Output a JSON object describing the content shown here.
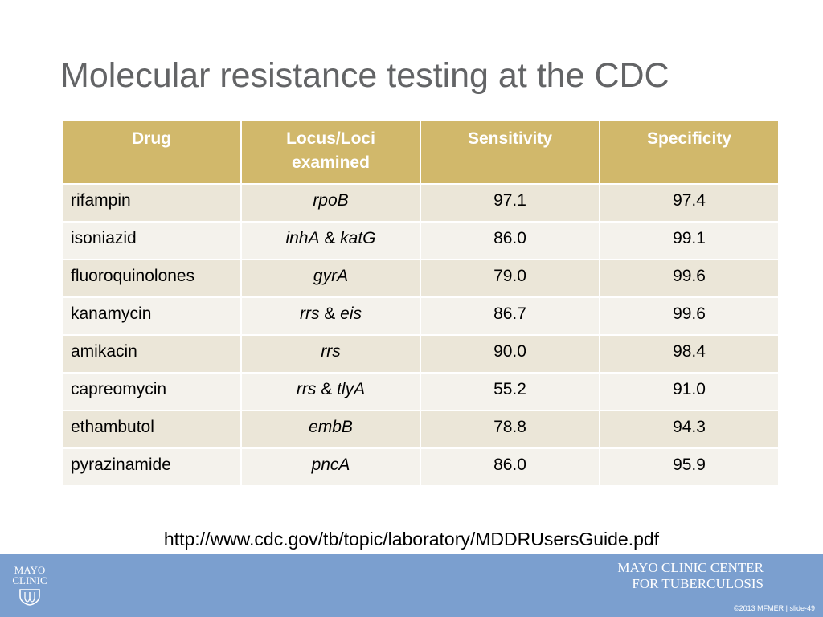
{
  "slide": {
    "title": "Molecular resistance testing at the CDC",
    "url": "http://www.cdc.gov/tb/topic/laboratory/MDDRUsersGuide.pdf"
  },
  "table": {
    "headers": [
      "Drug",
      "Locus/Loci examined",
      "Sensitivity",
      "Specificity"
    ],
    "rows": [
      {
        "drug": "rifampin",
        "locus": [
          {
            "t": "rpoB",
            "i": true
          }
        ],
        "sensitivity": "97.1",
        "specificity": "97.4"
      },
      {
        "drug": "isoniazid",
        "locus": [
          {
            "t": "inhA",
            "i": true
          },
          {
            "t": " & ",
            "i": false
          },
          {
            "t": "katG",
            "i": true
          }
        ],
        "sensitivity": "86.0",
        "specificity": "99.1"
      },
      {
        "drug": "fluoroquinolones",
        "locus": [
          {
            "t": "gyrA",
            "i": true
          }
        ],
        "sensitivity": "79.0",
        "specificity": "99.6"
      },
      {
        "drug": "kanamycin",
        "locus": [
          {
            "t": "rrs",
            "i": true
          },
          {
            "t": " & ",
            "i": false
          },
          {
            "t": "eis",
            "i": true
          }
        ],
        "sensitivity": "86.7",
        "specificity": "99.6"
      },
      {
        "drug": "amikacin",
        "locus": [
          {
            "t": "rrs",
            "i": true
          }
        ],
        "sensitivity": "90.0",
        "specificity": "98.4"
      },
      {
        "drug": "capreomycin",
        "locus": [
          {
            "t": "rrs",
            "i": true
          },
          {
            "t": " & ",
            "i": false
          },
          {
            "t": "tlyA",
            "i": true
          }
        ],
        "sensitivity": "55.2",
        "specificity": "91.0"
      },
      {
        "drug": "ethambutol",
        "locus": [
          {
            "t": "embB",
            "i": true
          }
        ],
        "sensitivity": "78.8",
        "specificity": "94.3"
      },
      {
        "drug": "pyrazinamide",
        "locus": [
          {
            "t": "pncA",
            "i": true
          }
        ],
        "sensitivity": "86.0",
        "specificity": "95.9"
      }
    ]
  },
  "footer": {
    "logo_line1": "MAYO",
    "logo_line2": "CLINIC",
    "center_line1": "MAYO CLINIC CENTER",
    "center_line2": "FOR TUBERCULOSIS",
    "copyright": "©2013 MFMER  |  slide-49"
  },
  "colors": {
    "header_bg": "#d1b86b",
    "row_dark": "#ebe6d8",
    "row_light": "#f4f2ec",
    "footer_bg": "#7b9fcf",
    "title": "#636466"
  }
}
